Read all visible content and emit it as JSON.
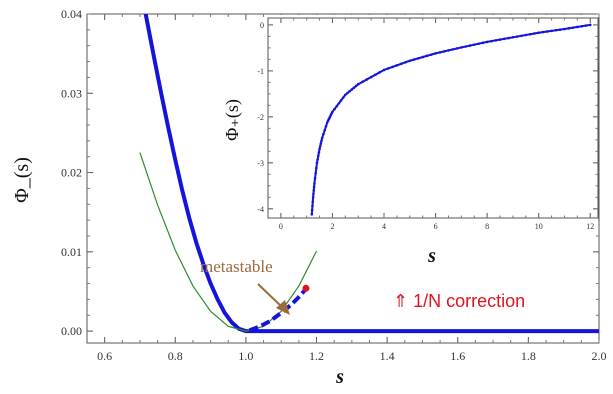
{
  "chart_data": [
    {
      "type": "line",
      "xlabel": "s",
      "ylabel": "Φ_(s)",
      "xlim": [
        0.55,
        2.0
      ],
      "ylim": [
        -0.0015,
        0.04
      ],
      "x_ticks": [
        "0.6",
        "0.8",
        "1.0",
        "1.2",
        "1.4",
        "1.6",
        "1.8",
        "2.0"
      ],
      "y_ticks": [
        "0.00",
        "0.01",
        "0.02",
        "0.03",
        "0.04"
      ],
      "series": [
        {
          "style": "thick-blue",
          "color": "#1414dc",
          "x": [
            0.7,
            0.72,
            0.74,
            0.76,
            0.78,
            0.8,
            0.82,
            0.84,
            0.86,
            0.88,
            0.9,
            0.92,
            0.94,
            0.96,
            0.98,
            1.0,
            1.2,
            1.4,
            1.6,
            1.8,
            2.0
          ],
          "y": [
            0.0438,
            0.0391,
            0.0345,
            0.03,
            0.0257,
            0.0216,
            0.0177,
            0.0142,
            0.0111,
            0.0084,
            0.006,
            0.004,
            0.0023,
            0.0011,
            0.0003,
            0.0,
            0.0,
            0.0,
            0.0,
            0.0,
            0.0
          ]
        },
        {
          "style": "thin-green",
          "color": "#2e8b2e",
          "x": [
            0.7,
            0.75,
            0.8,
            0.85,
            0.9,
            0.95,
            1.0,
            1.05,
            1.1,
            1.15,
            1.2
          ],
          "y": [
            0.0225,
            0.0159,
            0.0102,
            0.0057,
            0.0025,
            0.0006,
            0.0,
            0.0006,
            0.0025,
            0.0057,
            0.0101
          ]
        },
        {
          "style": "dashed-blue",
          "color": "#1414dc",
          "x": [
            1.01,
            1.04,
            1.07,
            1.1,
            1.13,
            1.15,
            1.17
          ],
          "y": [
            0.0001,
            0.0006,
            0.0013,
            0.0023,
            0.0034,
            0.0043,
            0.0053
          ],
          "endpoint": {
            "x": 1.17,
            "y": 0.0054,
            "color": "#e0141e"
          }
        }
      ],
      "annotations": [
        {
          "text": "metastable",
          "color": "#9c6b3c",
          "arrow_to": {
            "x": 1.03,
            "y": 0.0008
          }
        },
        {
          "text": "⇑ 1/N correction",
          "color": "#e0141e"
        }
      ]
    },
    {
      "type": "line",
      "inset": true,
      "xlabel": "s",
      "ylabel": "Φ₊(s)",
      "xlim": [
        -0.5,
        12.3
      ],
      "ylim": [
        -4.2,
        0.15
      ],
      "x_ticks": [
        "0",
        "2",
        "4",
        "6",
        "8",
        "10",
        "12"
      ],
      "y_ticks": [
        "0",
        "-1",
        "-2",
        "-3",
        "-4"
      ],
      "series": [
        {
          "color": "#1414dc",
          "markers": true,
          "x": [
            1.2,
            1.25,
            1.3,
            1.4,
            1.5,
            1.6,
            1.8,
            2.0,
            2.5,
            3.0,
            4.0,
            5.0,
            6.0,
            7.0,
            8.0,
            9.0,
            10.0,
            11.0,
            12.0
          ],
          "y": [
            -4.12,
            -3.75,
            -3.45,
            -3.0,
            -2.7,
            -2.46,
            -2.12,
            -1.89,
            -1.52,
            -1.29,
            -0.98,
            -0.78,
            -0.62,
            -0.49,
            -0.37,
            -0.27,
            -0.17,
            -0.09,
            0.0
          ]
        }
      ]
    }
  ]
}
